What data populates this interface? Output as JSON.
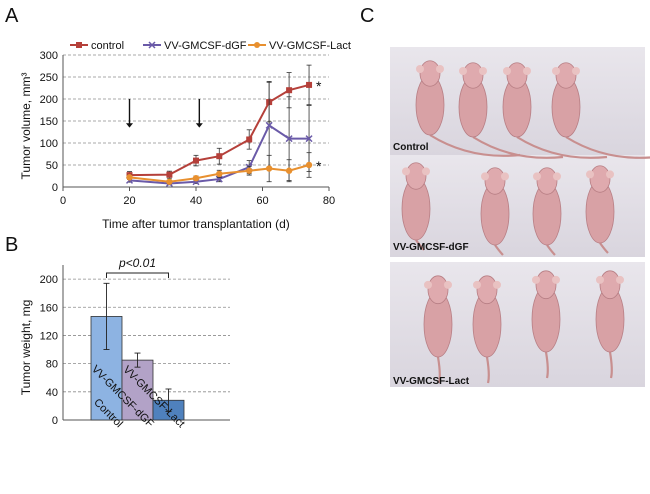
{
  "panel_labels": {
    "a": "A",
    "b": "B",
    "c": "C"
  },
  "colors": {
    "control": "#b5403a",
    "dgf": "#6a5aa8",
    "lact": "#e8902f",
    "bar_control": "#8db3e2",
    "bar_dgf": "#b2a2c7",
    "bar_lact": "#4f81bd",
    "grid": "#8c8c8c"
  },
  "chart_data": [
    {
      "type": "line",
      "title": "",
      "xlabel": "Time after tumor transplantation (d)",
      "ylabel": "Tumor volume, mm³",
      "xlim": [
        0,
        80
      ],
      "ylim": [
        0,
        300
      ],
      "xticks": [
        0,
        20,
        40,
        60,
        80
      ],
      "yticks": [
        0,
        50,
        100,
        150,
        200,
        250,
        300
      ],
      "grid": "horizontal dashed",
      "legend": [
        "control",
        "VV-GMCSF-dGF",
        "VV-GMCSF-Lact"
      ],
      "legend_placement": "top",
      "series": [
        {
          "name": "control",
          "x": [
            20,
            32,
            40,
            47,
            56,
            62,
            68,
            74
          ],
          "y": [
            27,
            28,
            60,
            70,
            108,
            193,
            220,
            232
          ],
          "err": [
            8,
            8,
            12,
            18,
            22,
            45,
            40,
            45
          ]
        },
        {
          "name": "VV-GMCSF-dGF",
          "x": [
            20,
            32,
            40,
            47,
            56,
            62,
            68,
            74
          ],
          "y": [
            15,
            8,
            12,
            18,
            45,
            140,
            110,
            110
          ],
          "err": [
            4,
            3,
            4,
            6,
            15,
            100,
            95,
            75
          ]
        },
        {
          "name": "VV-GMCSF-Lact",
          "x": [
            20,
            32,
            40,
            47,
            56,
            62,
            68,
            74
          ],
          "y": [
            22,
            12,
            20,
            30,
            37,
            42,
            37,
            50
          ],
          "err": [
            5,
            4,
            5,
            8,
            10,
            30,
            25,
            28
          ]
        }
      ],
      "arrows_at_days": [
        20,
        41
      ],
      "significance_marker": "*"
    },
    {
      "type": "bar",
      "title": "",
      "xlabel": "",
      "ylabel": "Tumor weight, mg",
      "ylim": [
        0,
        220
      ],
      "yticks": [
        0,
        40,
        80,
        120,
        160,
        200
      ],
      "categories": [
        "Control",
        "VV-GMCSF-dGF",
        "VV-GMCSF-Lact"
      ],
      "values": [
        147,
        85,
        28
      ],
      "errors": [
        47,
        10,
        16
      ],
      "annotation": "p<0.01",
      "grid": "horizontal dashed"
    }
  ],
  "photo_labels": [
    "Control",
    "VV-GMCSF-dGF",
    "VV-GMCSF-Lact"
  ]
}
